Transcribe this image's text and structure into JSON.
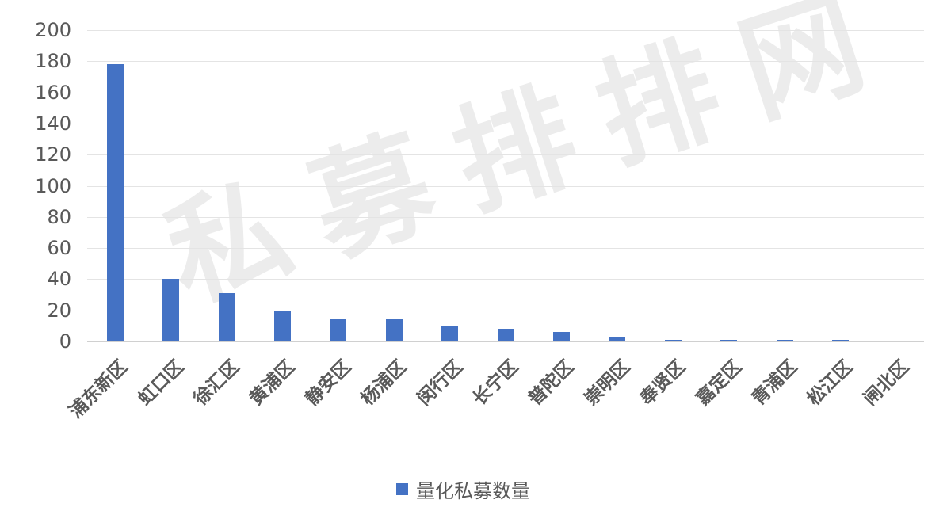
{
  "chart_data": {
    "type": "bar",
    "title": "",
    "xlabel": "",
    "ylabel": "",
    "ylim": [
      0,
      200
    ],
    "yticks": [
      0,
      20,
      40,
      60,
      80,
      100,
      120,
      140,
      160,
      180,
      200
    ],
    "grid": true,
    "legend_position": "bottom",
    "categories": [
      "浦东新区",
      "虹口区",
      "徐汇区",
      "黄浦区",
      "静安区",
      "杨浦区",
      "闵行区",
      "长宁区",
      "普陀区",
      "崇明区",
      "奉贤区",
      "嘉定区",
      "青浦区",
      "松江区",
      "闸北区"
    ],
    "series": [
      {
        "name": "量化私募数量",
        "color": "#4472c4",
        "values": [
          178,
          40,
          31,
          20,
          14,
          14,
          10,
          8,
          6,
          3,
          1,
          1,
          1,
          1,
          0.5
        ]
      }
    ]
  },
  "legend": {
    "label": "量化私募数量",
    "color": "#4472c4"
  },
  "watermark": "私募排排网",
  "colors": {
    "bar": "#4472c4",
    "grid": "#e4e4e4",
    "text": "#595959"
  }
}
